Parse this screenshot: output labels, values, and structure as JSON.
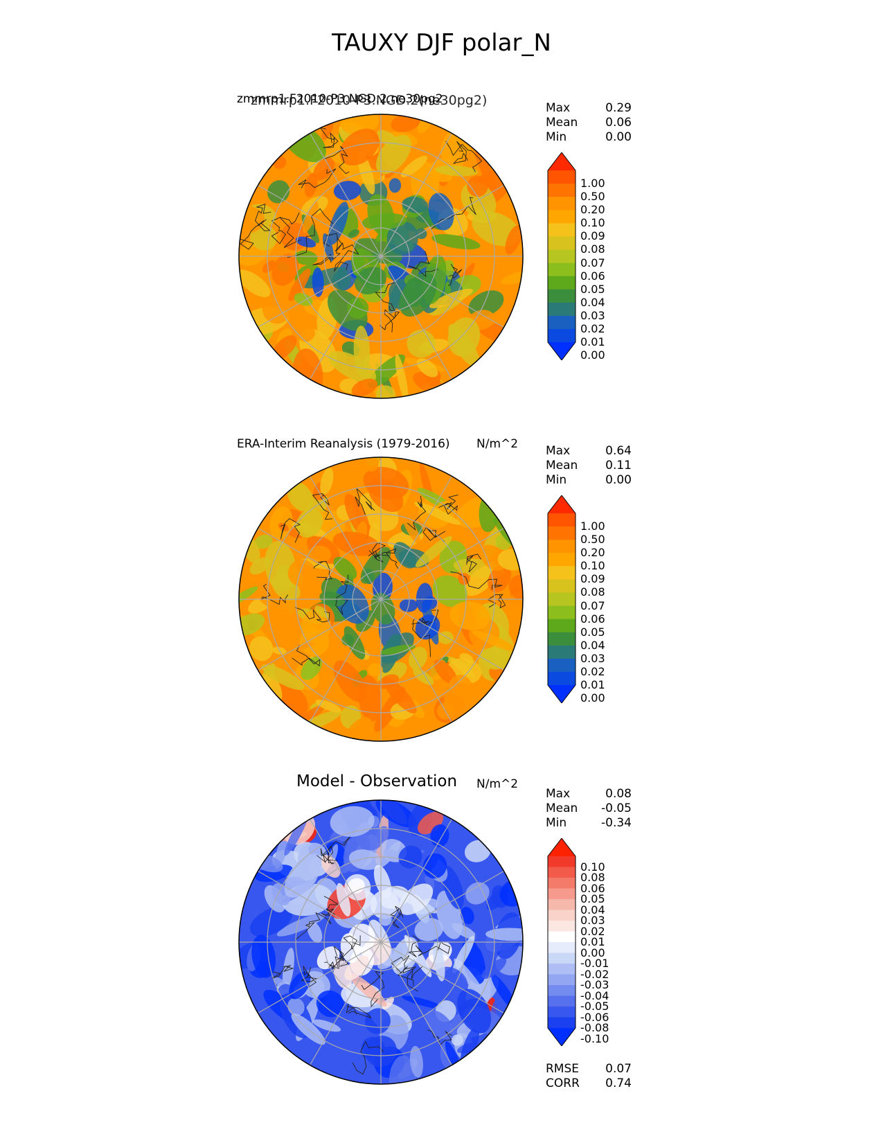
{
  "title": "TAUXY DJF polar_N",
  "panels": [
    {
      "id": "test",
      "title": "zmmrp1.F2010-P3.NGD.2.ne30pg2",
      "title_overlay": "zmmrp1.F2010-P3.NGD.2(ne30pg2)",
      "units": "",
      "stats": [
        {
          "label": "Max",
          "value": "0.29"
        },
        {
          "label": "Mean",
          "value": "0.06"
        },
        {
          "label": "Min",
          "value": "0.00"
        }
      ],
      "colorbar": {
        "levels": [
          "1.00",
          "0.50",
          "0.20",
          "0.10",
          "0.09",
          "0.08",
          "0.07",
          "0.06",
          "0.05",
          "0.04",
          "0.03",
          "0.02",
          "0.01",
          "0.00"
        ],
        "colors": [
          "#ff2a00",
          "#ff5500",
          "#ff7400",
          "#ff9400",
          "#ffa600",
          "#f5c21c",
          "#d8c21e",
          "#b6c520",
          "#8cbf1e",
          "#5ea81c",
          "#3b8f3c",
          "#2a7a78",
          "#1a60c0",
          "#0a4ae0",
          "#0030ff"
        ],
        "extend": "both"
      }
    },
    {
      "id": "reference",
      "title": "ERA-Interim Reanalysis (1979-2016)",
      "units": "N/m^2",
      "stats": [
        {
          "label": "Max",
          "value": "0.64"
        },
        {
          "label": "Mean",
          "value": "0.11"
        },
        {
          "label": "Min",
          "value": "0.00"
        }
      ],
      "colorbar": {
        "levels": [
          "1.00",
          "0.50",
          "0.20",
          "0.10",
          "0.09",
          "0.08",
          "0.07",
          "0.06",
          "0.05",
          "0.04",
          "0.03",
          "0.02",
          "0.01",
          "0.00"
        ],
        "colors": [
          "#ff2a00",
          "#ff5500",
          "#ff7400",
          "#ff9400",
          "#ffa600",
          "#f5c21c",
          "#d8c21e",
          "#b6c520",
          "#8cbf1e",
          "#5ea81c",
          "#3b8f3c",
          "#2a7a78",
          "#1a60c0",
          "#0a4ae0",
          "#0030ff"
        ],
        "extend": "both"
      }
    },
    {
      "id": "diff",
      "title": "Model - Observation",
      "units": "N/m^2",
      "stats": [
        {
          "label": "Max",
          "value": "0.08"
        },
        {
          "label": "Mean",
          "value": "-0.05"
        },
        {
          "label": "Min",
          "value": "-0.34"
        }
      ],
      "extra_stats": [
        {
          "label": "RMSE",
          "value": "0.07"
        },
        {
          "label": "CORR",
          "value": "0.74"
        }
      ],
      "colorbar": {
        "levels": [
          "0.10",
          "0.08",
          "0.06",
          "0.05",
          "0.04",
          "0.03",
          "0.02",
          "0.01",
          "0.00",
          "-0.01",
          "-0.02",
          "-0.03",
          "-0.04",
          "-0.05",
          "-0.06",
          "-0.08",
          "-0.10"
        ],
        "colors": [
          "#ff2200",
          "#f23a2a",
          "#f25a4a",
          "#f47a6a",
          "#f59a8c",
          "#f7b8ac",
          "#f9d2ca",
          "#fbe6e2",
          "#ffffff",
          "#e6ecfb",
          "#cad8f7",
          "#aebef4",
          "#92a6f2",
          "#748cf0",
          "#5670ee",
          "#3857ee",
          "#1a40f0",
          "#0030ff"
        ],
        "extend": "both"
      }
    }
  ],
  "chart_data": [
    {
      "type": "heatmap",
      "projection": "north-polar-stereographic",
      "title": "zmmrp1.F2010-P3.NGD.2.ne30pg2",
      "variable": "TAUXY",
      "season": "DJF",
      "stats": {
        "max": 0.29,
        "mean": 0.06,
        "min": 0.0
      },
      "contour_levels": [
        0.0,
        0.01,
        0.02,
        0.03,
        0.04,
        0.05,
        0.06,
        0.07,
        0.08,
        0.09,
        0.1,
        0.2,
        0.5,
        1.0
      ]
    },
    {
      "type": "heatmap",
      "projection": "north-polar-stereographic",
      "title": "ERA-Interim Reanalysis (1979-2016)",
      "units": "N/m^2",
      "stats": {
        "max": 0.64,
        "mean": 0.11,
        "min": 0.0
      },
      "contour_levels": [
        0.0,
        0.01,
        0.02,
        0.03,
        0.04,
        0.05,
        0.06,
        0.07,
        0.08,
        0.09,
        0.1,
        0.2,
        0.5,
        1.0
      ]
    },
    {
      "type": "heatmap",
      "projection": "north-polar-stereographic",
      "title": "Model - Observation",
      "units": "N/m^2",
      "stats": {
        "max": 0.08,
        "mean": -0.05,
        "min": -0.34,
        "rmse": 0.07,
        "corr": 0.74
      },
      "contour_levels": [
        -0.1,
        -0.08,
        -0.06,
        -0.05,
        -0.04,
        -0.03,
        -0.02,
        -0.01,
        0.0,
        0.01,
        0.02,
        0.03,
        0.04,
        0.05,
        0.06,
        0.08,
        0.1
      ]
    }
  ]
}
